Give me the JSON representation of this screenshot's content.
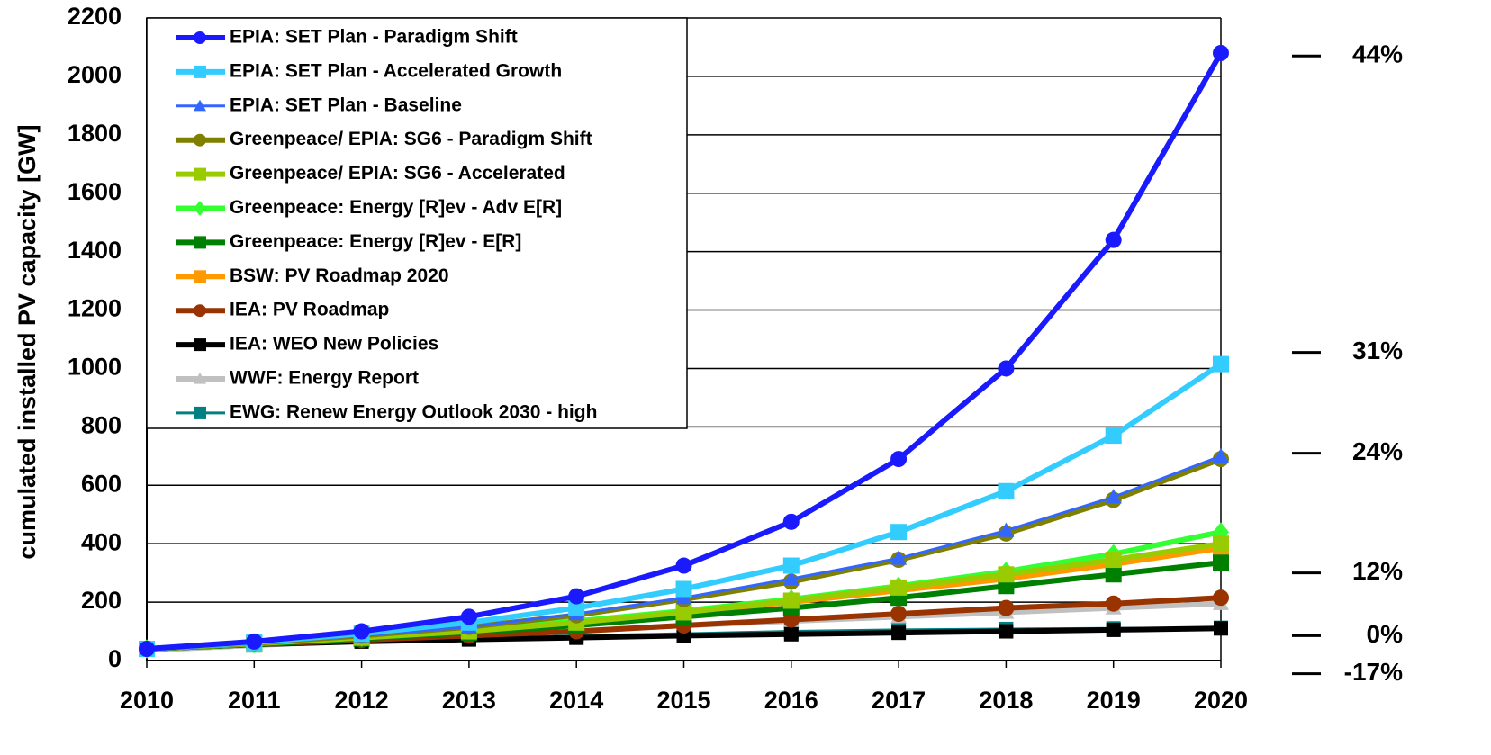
{
  "chart_data": {
    "type": "line",
    "y_label": "cumulated installed PV capacity [GW]",
    "x": [
      2010,
      2011,
      2012,
      2013,
      2014,
      2015,
      2016,
      2017,
      2018,
      2019,
      2020
    ],
    "xlim": [
      2010,
      2020
    ],
    "xticks": [
      2010,
      2011,
      2012,
      2013,
      2014,
      2015,
      2016,
      2017,
      2018,
      2019,
      2020
    ],
    "ylim": [
      0,
      2200
    ],
    "yticks": [
      0,
      200,
      400,
      600,
      800,
      1000,
      1200,
      1400,
      1600,
      1800,
      2000,
      2200
    ],
    "grid": true,
    "legend": "upper left",
    "series": [
      {
        "name": "EPIA: SET Plan - Paradigm Shift",
        "color": "#1a1aff",
        "marker": "circle",
        "values": [
          40,
          65,
          100,
          150,
          220,
          325,
          475,
          690,
          1000,
          1440,
          2080
        ]
      },
      {
        "name": "EPIA: SET Plan - Accelerated Growth",
        "color": "#33ccff",
        "marker": "square",
        "values": [
          40,
          62,
          92,
          130,
          180,
          245,
          325,
          440,
          580,
          770,
          1015
        ]
      },
      {
        "name": "EPIA: SET Plan - Baseline",
        "color": "#3366ff",
        "marker": "triangle",
        "values": [
          40,
          60,
          85,
          115,
          160,
          215,
          280,
          350,
          445,
          560,
          700
        ]
      },
      {
        "name": "Greenpeace/ EPIA: SG6 - Paradigm Shift",
        "color": "#808000",
        "marker": "circle",
        "values": [
          40,
          60,
          85,
          115,
          155,
          210,
          270,
          345,
          435,
          550,
          690
        ]
      },
      {
        "name": "Greenpeace/ EPIA: SG6 - Accelerated",
        "color": "#99cc00",
        "marker": "square",
        "values": [
          40,
          58,
          78,
          100,
          130,
          165,
          205,
          250,
          295,
          345,
          400
        ]
      },
      {
        "name": "Greenpeace: Energy [R]ev - Adv  E[R]",
        "color": "#33ff33",
        "marker": "diamond",
        "values": [
          40,
          58,
          80,
          105,
          135,
          170,
          210,
          255,
          305,
          365,
          440
        ]
      },
      {
        "name": "Greenpeace: Energy [R]ev - E[R]",
        "color": "#008000",
        "marker": "square",
        "values": [
          40,
          55,
          75,
          95,
          120,
          150,
          180,
          215,
          255,
          295,
          335
        ]
      },
      {
        "name": "BSW: PV Roadmap 2020",
        "color": "#ff9900",
        "marker": "square",
        "values": [
          40,
          58,
          80,
          100,
          130,
          165,
          200,
          240,
          280,
          330,
          385
        ]
      },
      {
        "name": "IEA: PV Roadmap",
        "color": "#993300",
        "marker": "circle",
        "values": [
          40,
          55,
          70,
          85,
          100,
          120,
          140,
          160,
          180,
          195,
          215
        ]
      },
      {
        "name": "IEA: WEO New Policies",
        "color": "#000000",
        "marker": "square",
        "values": [
          40,
          55,
          65,
          72,
          78,
          85,
          90,
          95,
          100,
          105,
          110
        ]
      },
      {
        "name": "WWF: Energy Report",
        "color": "#c0c0c0",
        "marker": "triangle",
        "values": [
          35,
          52,
          68,
          85,
          100,
          120,
          135,
          150,
          165,
          180,
          195
        ]
      },
      {
        "name": "EWG: Renew Energy Outlook 2030 - high",
        "color": "#008080",
        "marker": "square",
        "values": [
          40,
          55,
          68,
          75,
          85,
          92,
          100,
          105,
          108,
          110,
          112
        ]
      }
    ],
    "annotations": [
      {
        "label": "44%",
        "y": 2070
      },
      {
        "label": "31%",
        "y": 1055
      },
      {
        "label": "24%",
        "y": 710
      },
      {
        "label": "12%",
        "y": 300
      },
      {
        "label": "0%",
        "y": 85
      },
      {
        "label": "-17%",
        "y": -45
      }
    ]
  }
}
